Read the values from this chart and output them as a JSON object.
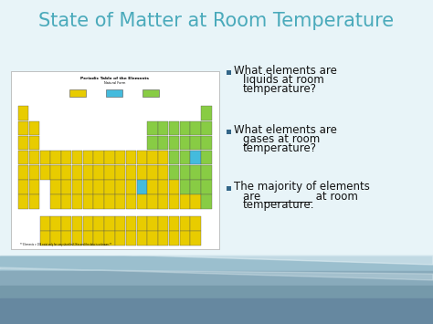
{
  "title": "State of Matter at Room Temperature",
  "title_color": "#4AAABB",
  "title_fontsize": 15,
  "bullet_color": "#336688",
  "bullet1_line1": "What elements are",
  "bullet1_line2": "liquids at room",
  "bullet1_line3": "temperature?",
  "bullet2_line1": "What elements are",
  "bullet2_line2": "gases at room",
  "bullet2_line3": "temperature?",
  "bullet3_line1": "The majority of elements",
  "bullet3_line2": "are _________ at room",
  "bullet3_line3": "temperature.",
  "text_color": "#111111",
  "text_fontsize": 8.5,
  "slide_bg": "#E8F4F8",
  "bottom_color1": "#99BBCC",
  "bottom_color2": "#7AAABB",
  "bottom_color3": "#5588AA",
  "pt_yellow": "#E8CC00",
  "pt_green": "#88CC44",
  "pt_cyan": "#44BBDD",
  "pt_dark_yellow": "#CCAA00",
  "pt_bg": "#FFFFFF",
  "pt_border": "#999999"
}
